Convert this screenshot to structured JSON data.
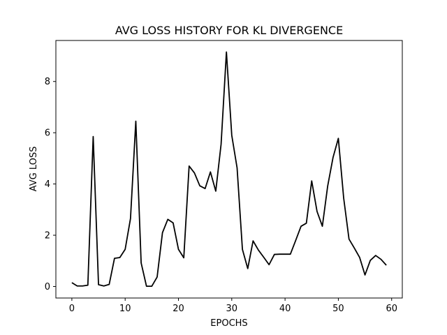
{
  "chart_data": {
    "type": "line",
    "title": "AVG LOSS HISTORY FOR KL DIVERGENCE",
    "xlabel": "EPOCHS",
    "ylabel": "AVG LOSS",
    "xlim": [
      -3,
      62
    ],
    "ylim": [
      -0.45,
      9.6
    ],
    "x_ticks": [
      0,
      10,
      20,
      30,
      40,
      50,
      60
    ],
    "y_ticks": [
      0,
      2,
      4,
      6,
      8
    ],
    "grid": false,
    "line_color": "#000000",
    "series": [
      {
        "x": [
          0,
          1,
          2,
          3,
          4,
          5,
          6,
          7,
          8,
          9,
          10,
          11,
          12,
          13,
          14,
          15,
          16,
          17,
          18,
          19,
          20,
          21,
          22,
          23,
          24,
          25,
          26,
          27,
          28,
          29,
          30,
          31,
          32,
          33,
          34,
          35,
          36,
          37,
          38,
          39,
          40,
          41,
          42,
          43,
          44,
          45,
          46,
          47,
          48,
          49,
          50,
          51,
          52,
          53,
          54,
          55,
          56,
          57,
          58,
          59
        ],
        "y": [
          0.15,
          0.02,
          0.02,
          0.05,
          5.85,
          0.07,
          0.02,
          0.08,
          1.1,
          1.13,
          1.45,
          2.65,
          6.45,
          0.92,
          0.01,
          0.01,
          0.37,
          2.1,
          2.62,
          2.48,
          1.45,
          1.12,
          4.7,
          4.43,
          3.93,
          3.82,
          4.47,
          3.72,
          5.55,
          9.15,
          5.9,
          4.63,
          1.45,
          0.7,
          1.78,
          1.42,
          1.14,
          0.85,
          1.25,
          1.26,
          1.26,
          1.26,
          1.8,
          2.35,
          2.47,
          4.12,
          2.93,
          2.35,
          3.92,
          5.03,
          5.78,
          3.45,
          1.85,
          1.5,
          1.13,
          0.45,
          1.02,
          1.21,
          1.06,
          0.83
        ]
      }
    ]
  }
}
